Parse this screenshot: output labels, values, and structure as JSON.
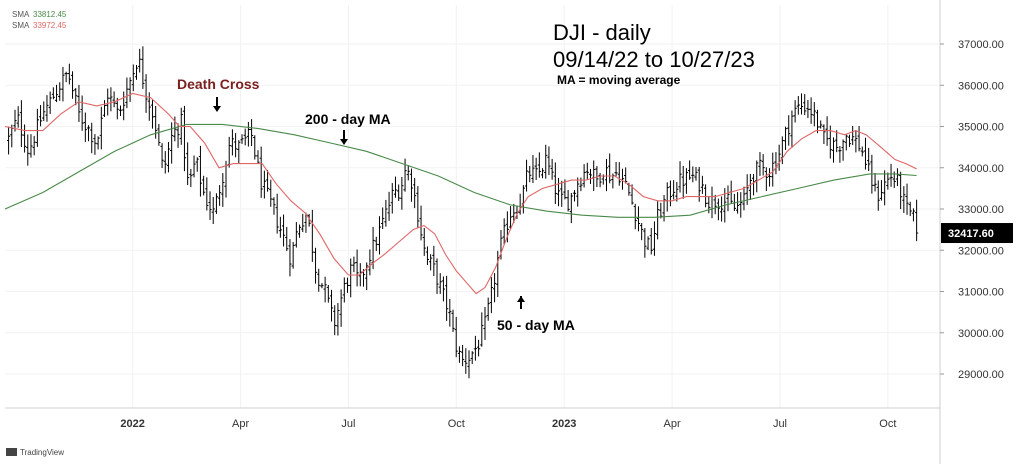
{
  "chart_data": {
    "type": "ohlc",
    "title": "DJI - daily",
    "subtitle": "09/14/22 to 10/27/23",
    "note": "MA = moving average",
    "ylim": [
      28400,
      37600
    ],
    "y_ticks": [
      29000,
      30000,
      31000,
      32000,
      33000,
      34000,
      35000,
      36000,
      37000
    ],
    "y_tick_labels": [
      "29000.00",
      "30000.00",
      "31000.00",
      "32000.00",
      "33000.00",
      "34000.00",
      "35000.00",
      "36000.00",
      "37000.00"
    ],
    "x_ticks": [
      {
        "label": "2022",
        "month": 12,
        "bold": true
      },
      {
        "label": "Apr",
        "month": 15,
        "bold": false
      },
      {
        "label": "Jul",
        "month": 18,
        "bold": false
      },
      {
        "label": "Oct",
        "month": 21,
        "bold": false
      },
      {
        "label": "2023",
        "month": 24,
        "bold": true
      },
      {
        "label": "Apr",
        "month": 27,
        "bold": false
      },
      {
        "label": "Jul",
        "month": 30,
        "bold": false
      },
      {
        "label": "Oct",
        "month": 33,
        "bold": false
      }
    ],
    "x_range_months": [
      8.45,
      34.45
    ],
    "last_value": 32417.6,
    "last_value_label": "32417.60",
    "legend": [
      {
        "name": "SMA",
        "value": "33812.45",
        "color": "#4a8a4a"
      },
      {
        "name": "SMA",
        "value": "33972.45",
        "color": "#e06666"
      }
    ],
    "price_anchors": [
      [
        8.55,
        34700
      ],
      [
        8.8,
        35200
      ],
      [
        9.1,
        34400
      ],
      [
        9.5,
        35300
      ],
      [
        9.9,
        35900
      ],
      [
        10.2,
        36300
      ],
      [
        10.5,
        35300
      ],
      [
        10.8,
        34900
      ],
      [
        11.0,
        34600
      ],
      [
        11.3,
        35800
      ],
      [
        11.6,
        35300
      ],
      [
        12.0,
        36300
      ],
      [
        12.15,
        36700
      ],
      [
        12.35,
        35900
      ],
      [
        12.6,
        35200
      ],
      [
        12.85,
        33900
      ],
      [
        13.1,
        34800
      ],
      [
        13.35,
        35100
      ],
      [
        13.55,
        33500
      ],
      [
        13.75,
        34200
      ],
      [
        14.0,
        33300
      ],
      [
        14.25,
        32900
      ],
      [
        14.5,
        33800
      ],
      [
        14.7,
        34600
      ],
      [
        14.95,
        34500
      ],
      [
        15.3,
        34800
      ],
      [
        15.55,
        33700
      ],
      [
        15.9,
        33000
      ],
      [
        16.2,
        32300
      ],
      [
        16.4,
        31800
      ],
      [
        16.6,
        32600
      ],
      [
        16.85,
        32900
      ],
      [
        17.1,
        31500
      ],
      [
        17.35,
        31000
      ],
      [
        17.6,
        30200
      ],
      [
        17.85,
        31000
      ],
      [
        18.1,
        31600
      ],
      [
        18.3,
        31200
      ],
      [
        18.5,
        31700
      ],
      [
        18.75,
        32200
      ],
      [
        19.0,
        32800
      ],
      [
        19.25,
        33400
      ],
      [
        19.45,
        33500
      ],
      [
        19.6,
        34000
      ],
      [
        19.75,
        33700
      ],
      [
        19.95,
        32800
      ],
      [
        20.15,
        31800
      ],
      [
        20.35,
        31600
      ],
      [
        20.6,
        31000
      ],
      [
        20.8,
        30500
      ],
      [
        20.95,
        29800
      ],
      [
        21.15,
        29300
      ],
      [
        21.35,
        29400
      ],
      [
        21.6,
        29700
      ],
      [
        21.8,
        30200
      ],
      [
        22.0,
        31000
      ],
      [
        22.2,
        32000
      ],
      [
        22.5,
        32900
      ],
      [
        22.8,
        33200
      ],
      [
        23.0,
        33900
      ],
      [
        23.25,
        33800
      ],
      [
        23.5,
        34200
      ],
      [
        23.7,
        33600
      ],
      [
        23.9,
        33200
      ],
      [
        24.15,
        33200
      ],
      [
        24.4,
        33700
      ],
      [
        24.65,
        34000
      ],
      [
        24.9,
        33700
      ],
      [
        25.1,
        34000
      ],
      [
        25.3,
        33800
      ],
      [
        25.5,
        33900
      ],
      [
        25.75,
        33500
      ],
      [
        25.95,
        33000
      ],
      [
        26.2,
        32300
      ],
      [
        26.4,
        32000
      ],
      [
        26.6,
        32800
      ],
      [
        26.85,
        33300
      ],
      [
        27.1,
        33600
      ],
      [
        27.3,
        33700
      ],
      [
        27.55,
        33800
      ],
      [
        27.8,
        33600
      ],
      [
        28.0,
        33200
      ],
      [
        28.25,
        33200
      ],
      [
        28.5,
        33200
      ],
      [
        28.75,
        33000
      ],
      [
        29.0,
        33200
      ],
      [
        29.2,
        33800
      ],
      [
        29.45,
        34000
      ],
      [
        29.7,
        33900
      ],
      [
        29.95,
        34300
      ],
      [
        30.15,
        34800
      ],
      [
        30.35,
        35300
      ],
      [
        30.55,
        35500
      ],
      [
        30.75,
        35500
      ],
      [
        31.0,
        35200
      ],
      [
        31.2,
        34700
      ],
      [
        31.4,
        34600
      ],
      [
        31.6,
        34500
      ],
      [
        31.85,
        34800
      ],
      [
        32.05,
        34700
      ],
      [
        32.25,
        34500
      ],
      [
        32.5,
        33800
      ],
      [
        32.7,
        33300
      ],
      [
        32.9,
        33600
      ],
      [
        33.1,
        33800
      ],
      [
        33.3,
        33600
      ],
      [
        33.5,
        33000
      ],
      [
        33.7,
        32800
      ],
      [
        33.8,
        32400
      ]
    ],
    "sma50_points": [
      [
        8.45,
        35000
      ],
      [
        9.0,
        34900
      ],
      [
        9.5,
        34900
      ],
      [
        10.0,
        35300
      ],
      [
        10.5,
        35600
      ],
      [
        11.0,
        35500
      ],
      [
        11.5,
        35600
      ],
      [
        12.0,
        35800
      ],
      [
        12.5,
        35700
      ],
      [
        13.0,
        35300
      ],
      [
        13.3,
        35000
      ],
      [
        13.6,
        35000
      ],
      [
        14.0,
        34600
      ],
      [
        14.4,
        34000
      ],
      [
        14.8,
        34100
      ],
      [
        15.2,
        34100
      ],
      [
        15.6,
        34100
      ],
      [
        16.0,
        33600
      ],
      [
        16.4,
        33200
      ],
      [
        16.8,
        32900
      ],
      [
        17.2,
        32400
      ],
      [
        17.6,
        31800
      ],
      [
        18.0,
        31400
      ],
      [
        18.3,
        31400
      ],
      [
        18.7,
        31700
      ],
      [
        19.0,
        31900
      ],
      [
        19.4,
        32200
      ],
      [
        19.8,
        32500
      ],
      [
        20.1,
        32600
      ],
      [
        20.4,
        32400
      ],
      [
        20.7,
        31900
      ],
      [
        21.0,
        31500
      ],
      [
        21.3,
        31200
      ],
      [
        21.55,
        30950
      ],
      [
        21.8,
        31100
      ],
      [
        22.1,
        31600
      ],
      [
        22.4,
        32300
      ],
      [
        22.7,
        32900
      ],
      [
        23.0,
        33300
      ],
      [
        23.4,
        33500
      ],
      [
        23.8,
        33600
      ],
      [
        24.2,
        33700
      ],
      [
        24.6,
        33700
      ],
      [
        25.0,
        33800
      ],
      [
        25.4,
        33800
      ],
      [
        25.8,
        33600
      ],
      [
        26.2,
        33300
      ],
      [
        26.6,
        33200
      ],
      [
        27.0,
        33200
      ],
      [
        27.4,
        33300
      ],
      [
        27.8,
        33300
      ],
      [
        28.2,
        33300
      ],
      [
        28.6,
        33400
      ],
      [
        29.0,
        33500
      ],
      [
        29.4,
        33700
      ],
      [
        29.8,
        33900
      ],
      [
        30.2,
        34400
      ],
      [
        30.6,
        34700
      ],
      [
        31.0,
        34900
      ],
      [
        31.4,
        34900
      ],
      [
        31.8,
        34800
      ],
      [
        32.1,
        34900
      ],
      [
        32.4,
        34800
      ],
      [
        32.8,
        34500
      ],
      [
        33.2,
        34200
      ],
      [
        33.5,
        34100
      ],
      [
        33.8,
        33972
      ]
    ],
    "sma200_points": [
      [
        8.45,
        33000
      ],
      [
        9.5,
        33400
      ],
      [
        10.5,
        33900
      ],
      [
        11.5,
        34400
      ],
      [
        12.5,
        34800
      ],
      [
        13.5,
        35050
      ],
      [
        14.5,
        35050
      ],
      [
        15.5,
        34950
      ],
      [
        16.5,
        34800
      ],
      [
        17.5,
        34600
      ],
      [
        18.5,
        34400
      ],
      [
        19.5,
        34100
      ],
      [
        20.5,
        33800
      ],
      [
        21.5,
        33400
      ],
      [
        22.5,
        33100
      ],
      [
        23.5,
        32950
      ],
      [
        24.5,
        32850
      ],
      [
        25.5,
        32800
      ],
      [
        26.5,
        32800
      ],
      [
        27.5,
        32850
      ],
      [
        28.5,
        33100
      ],
      [
        29.5,
        33300
      ],
      [
        30.5,
        33500
      ],
      [
        31.5,
        33700
      ],
      [
        32.5,
        33850
      ],
      [
        33.2,
        33850
      ],
      [
        33.8,
        33812
      ]
    ],
    "annotations": [
      {
        "text": "Death Cross",
        "color": "#7b2020",
        "arrow": "down",
        "month": 14.05,
        "value": 35200
      },
      {
        "text": "200 - day MA",
        "color": "#000000",
        "arrow": "down",
        "month": 18.0,
        "value": 34400
      },
      {
        "text": "50 - day MA",
        "color": "#000000",
        "arrow": "up",
        "month": 22.3,
        "value": 30850
      }
    ]
  },
  "branding": {
    "logo_text": "TradingView"
  }
}
